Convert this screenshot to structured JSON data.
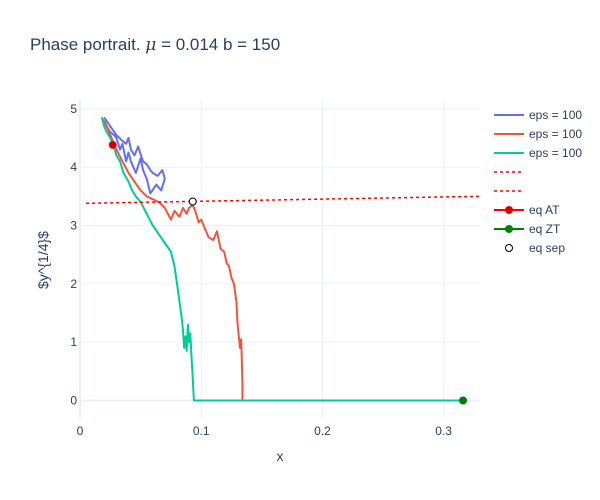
{
  "chart_data": {
    "type": "line",
    "title_prefix": "Phase portrait. ",
    "title_mu_symbol": "μ",
    "title_suffix": " = 0.014 b = 150",
    "xlabel": "x",
    "ylabel": "$y^{1/4}$",
    "xlim": [
      0,
      0.33
    ],
    "ylim": [
      -0.3,
      5.15
    ],
    "x_ticks": [
      0,
      0.1,
      0.2,
      0.3
    ],
    "x_tick_labels": [
      "0",
      "0.1",
      "0.2",
      "0.3"
    ],
    "y_ticks": [
      0,
      1,
      2,
      3,
      4,
      5
    ],
    "y_tick_labels": [
      "0",
      "1",
      "2",
      "3",
      "4",
      "5"
    ],
    "legend_position": "right",
    "series": [
      {
        "name": "eps = 100",
        "color": "#636efa",
        "style": "solid",
        "x": [
          0.02,
          0.025,
          0.03,
          0.035,
          0.038,
          0.04,
          0.042,
          0.045,
          0.048,
          0.052,
          0.055,
          0.058,
          0.06,
          0.064,
          0.068,
          0.07,
          0.067,
          0.063,
          0.058,
          0.055,
          0.052,
          0.05,
          0.046,
          0.042,
          0.04,
          0.038,
          0.035,
          0.033,
          0.03,
          0.028,
          0.025,
          0.022,
          0.02,
          0.019,
          0.018
        ],
        "y": [
          4.85,
          4.7,
          4.55,
          4.45,
          4.4,
          4.5,
          4.3,
          4.2,
          4.35,
          4.1,
          4.05,
          3.95,
          3.9,
          3.85,
          3.95,
          3.8,
          3.6,
          3.7,
          3.55,
          3.8,
          3.95,
          4.15,
          3.9,
          4.1,
          4.25,
          4.1,
          4.4,
          4.3,
          4.5,
          4.55,
          4.6,
          4.7,
          4.75,
          4.8,
          4.85
        ]
      },
      {
        "name": "eps = 100",
        "color": "#ef553b",
        "style": "solid",
        "x": [
          0.02,
          0.025,
          0.03,
          0.035,
          0.04,
          0.045,
          0.05,
          0.055,
          0.06,
          0.065,
          0.07,
          0.075,
          0.078,
          0.082,
          0.085,
          0.088,
          0.09,
          0.093,
          0.095,
          0.098,
          0.1,
          0.103,
          0.106,
          0.11,
          0.113,
          0.116,
          0.119,
          0.121,
          0.123,
          0.125,
          0.127,
          0.129,
          0.13,
          0.131,
          0.132,
          0.133,
          0.1335,
          0.134,
          0.134,
          0.135,
          0.3
        ],
        "y": [
          4.8,
          4.55,
          4.3,
          4.1,
          3.9,
          3.75,
          3.6,
          3.5,
          3.45,
          3.4,
          3.3,
          3.1,
          3.25,
          3.15,
          3.3,
          3.2,
          3.3,
          3.35,
          3.25,
          3.05,
          3.1,
          2.95,
          2.8,
          2.75,
          2.9,
          2.6,
          2.55,
          2.35,
          2.3,
          2.1,
          2.0,
          1.7,
          1.3,
          1.1,
          0.9,
          1.05,
          0.7,
          0.3,
          0.0,
          0.0,
          0.0
        ]
      },
      {
        "name": "eps = 100",
        "color": "#00cc96",
        "style": "solid",
        "x": [
          0.018,
          0.02,
          0.022,
          0.025,
          0.028,
          0.03,
          0.033,
          0.036,
          0.04,
          0.043,
          0.046,
          0.05,
          0.055,
          0.06,
          0.065,
          0.07,
          0.075,
          0.078,
          0.08,
          0.082,
          0.084,
          0.085,
          0.086,
          0.087,
          0.088,
          0.089,
          0.09,
          0.091,
          0.092,
          0.093,
          0.094,
          0.1,
          0.2,
          0.315
        ],
        "y": [
          4.85,
          4.7,
          4.6,
          4.5,
          4.35,
          4.2,
          4.1,
          3.9,
          3.75,
          3.6,
          3.5,
          3.4,
          3.2,
          3.0,
          2.85,
          2.7,
          2.55,
          2.3,
          2.0,
          1.7,
          1.4,
          1.2,
          0.9,
          1.1,
          0.85,
          1.3,
          1.0,
          1.15,
          0.75,
          0.4,
          0.0,
          0.0,
          0.0,
          0.0
        ]
      },
      {
        "name": "",
        "color": "#ff0000",
        "style": "dotted",
        "x": [
          0.005,
          0.33
        ],
        "y": [
          3.38,
          3.5
        ]
      },
      {
        "name": "",
        "color": "#ff0000",
        "style": "dotted",
        "x": [],
        "y": []
      }
    ],
    "markers": [
      {
        "name": "eq AT",
        "color": "#ff0000",
        "fill": "#cc0000",
        "x": 0.027,
        "y": 4.38,
        "legend_line": true
      },
      {
        "name": "eq ZT",
        "color": "#008000",
        "fill": "#008000",
        "x": 0.316,
        "y": 0.0,
        "legend_line": true
      },
      {
        "name": "eq sep",
        "color": "#000000",
        "fill": "#ffffff",
        "x": 0.093,
        "y": 3.41,
        "legend_line": false
      }
    ]
  }
}
